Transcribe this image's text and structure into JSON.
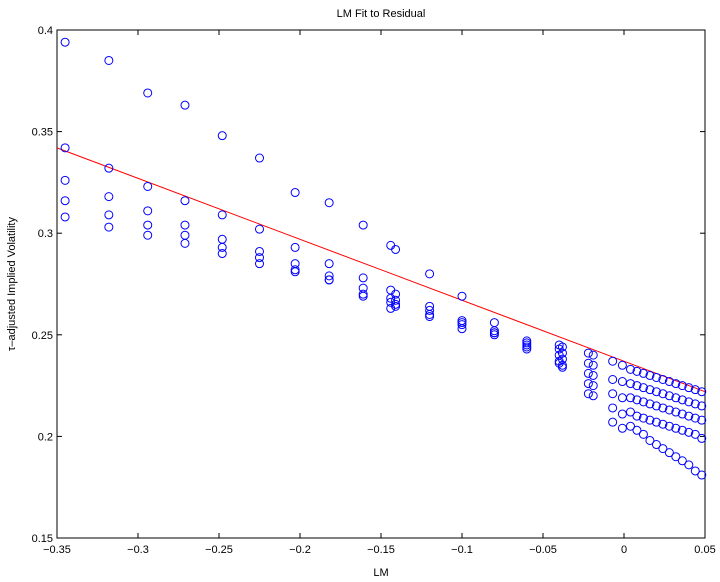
{
  "chart_data": {
    "type": "scatter",
    "title": "LM Fit to Residual",
    "xlabel": "LM",
    "ylabel": "τ–adjusted Implied Volatility",
    "xlim": [
      -0.35,
      0.05
    ],
    "ylim": [
      0.15,
      0.4
    ],
    "xticks": [
      -0.35,
      -0.3,
      -0.25,
      -0.2,
      -0.15,
      -0.1,
      -0.05,
      0,
      0.05
    ],
    "xtick_labels": [
      "−0.35",
      "−0.3",
      "−0.25",
      "−0.2",
      "−0.15",
      "−0.1",
      "−0.05",
      "0",
      "0.05"
    ],
    "yticks": [
      0.15,
      0.2,
      0.25,
      0.3,
      0.35,
      0.4
    ],
    "ytick_labels": [
      "0.15",
      "0.2",
      "0.25",
      "0.3",
      "0.35",
      "0.4"
    ],
    "grid": false,
    "marker_color": "#0000ff",
    "fit_color": "#ff0000",
    "points": [
      [
        -0.345,
        0.394
      ],
      [
        -0.345,
        0.342
      ],
      [
        -0.345,
        0.326
      ],
      [
        -0.345,
        0.316
      ],
      [
        -0.345,
        0.308
      ],
      [
        -0.318,
        0.385
      ],
      [
        -0.318,
        0.332
      ],
      [
        -0.318,
        0.318
      ],
      [
        -0.318,
        0.309
      ],
      [
        -0.318,
        0.303
      ],
      [
        -0.294,
        0.369
      ],
      [
        -0.294,
        0.323
      ],
      [
        -0.294,
        0.311
      ],
      [
        -0.294,
        0.304
      ],
      [
        -0.294,
        0.299
      ],
      [
        -0.271,
        0.363
      ],
      [
        -0.271,
        0.316
      ],
      [
        -0.271,
        0.304
      ],
      [
        -0.271,
        0.299
      ],
      [
        -0.271,
        0.295
      ],
      [
        -0.248,
        0.348
      ],
      [
        -0.248,
        0.309
      ],
      [
        -0.248,
        0.297
      ],
      [
        -0.248,
        0.293
      ],
      [
        -0.248,
        0.29
      ],
      [
        -0.225,
        0.337
      ],
      [
        -0.225,
        0.302
      ],
      [
        -0.225,
        0.291
      ],
      [
        -0.225,
        0.288
      ],
      [
        -0.225,
        0.285
      ],
      [
        -0.203,
        0.32
      ],
      [
        -0.203,
        0.293
      ],
      [
        -0.203,
        0.285
      ],
      [
        -0.203,
        0.282
      ],
      [
        -0.203,
        0.281
      ],
      [
        -0.182,
        0.315
      ],
      [
        -0.182,
        0.285
      ],
      [
        -0.182,
        0.279
      ],
      [
        -0.182,
        0.277
      ],
      [
        -0.182,
        0.277
      ],
      [
        -0.161,
        0.304
      ],
      [
        -0.161,
        0.278
      ],
      [
        -0.161,
        0.273
      ],
      [
        -0.161,
        0.27
      ],
      [
        -0.161,
        0.269
      ],
      [
        -0.144,
        0.294
      ],
      [
        -0.144,
        0.272
      ],
      [
        -0.144,
        0.268
      ],
      [
        -0.144,
        0.266
      ],
      [
        -0.144,
        0.263
      ],
      [
        -0.141,
        0.292
      ],
      [
        -0.141,
        0.27
      ],
      [
        -0.141,
        0.267
      ],
      [
        -0.141,
        0.265
      ],
      [
        -0.141,
        0.264
      ],
      [
        -0.12,
        0.28
      ],
      [
        -0.12,
        0.264
      ],
      [
        -0.12,
        0.262
      ],
      [
        -0.12,
        0.26
      ],
      [
        -0.12,
        0.259
      ],
      [
        -0.1,
        0.269
      ],
      [
        -0.1,
        0.257
      ],
      [
        -0.1,
        0.256
      ],
      [
        -0.1,
        0.255
      ],
      [
        -0.1,
        0.253
      ],
      [
        -0.08,
        0.256
      ],
      [
        -0.08,
        0.252
      ],
      [
        -0.08,
        0.251
      ],
      [
        -0.08,
        0.251
      ],
      [
        -0.08,
        0.25
      ],
      [
        -0.06,
        0.247
      ],
      [
        -0.06,
        0.246
      ],
      [
        -0.06,
        0.245
      ],
      [
        -0.06,
        0.244
      ],
      [
        -0.06,
        0.243
      ],
      [
        -0.04,
        0.245
      ],
      [
        -0.04,
        0.243
      ],
      [
        -0.04,
        0.24
      ],
      [
        -0.04,
        0.237
      ],
      [
        -0.04,
        0.236
      ],
      [
        -0.038,
        0.244
      ],
      [
        -0.038,
        0.241
      ],
      [
        -0.038,
        0.238
      ],
      [
        -0.038,
        0.235
      ],
      [
        -0.038,
        0.234
      ],
      [
        -0.022,
        0.241
      ],
      [
        -0.022,
        0.236
      ],
      [
        -0.022,
        0.231
      ],
      [
        -0.022,
        0.226
      ],
      [
        -0.022,
        0.221
      ],
      [
        -0.019,
        0.24
      ],
      [
        -0.019,
        0.235
      ],
      [
        -0.019,
        0.23
      ],
      [
        -0.019,
        0.225
      ],
      [
        -0.019,
        0.22
      ],
      [
        -0.007,
        0.237
      ],
      [
        -0.007,
        0.228
      ],
      [
        -0.007,
        0.221
      ],
      [
        -0.007,
        0.214
      ],
      [
        -0.007,
        0.207
      ],
      [
        -0.001,
        0.235
      ],
      [
        -0.001,
        0.227
      ],
      [
        -0.001,
        0.219
      ],
      [
        -0.001,
        0.211
      ],
      [
        -0.001,
        0.204
      ],
      [
        0.004,
        0.233
      ],
      [
        0.004,
        0.226
      ],
      [
        0.004,
        0.219
      ],
      [
        0.004,
        0.212
      ],
      [
        0.004,
        0.205
      ],
      [
        0.008,
        0.232
      ],
      [
        0.008,
        0.225
      ],
      [
        0.008,
        0.218
      ],
      [
        0.008,
        0.21
      ],
      [
        0.008,
        0.203
      ],
      [
        0.012,
        0.231
      ],
      [
        0.012,
        0.224
      ],
      [
        0.012,
        0.217
      ],
      [
        0.012,
        0.209
      ],
      [
        0.012,
        0.201
      ],
      [
        0.016,
        0.23
      ],
      [
        0.016,
        0.223
      ],
      [
        0.016,
        0.216
      ],
      [
        0.016,
        0.208
      ],
      [
        0.016,
        0.198
      ],
      [
        0.02,
        0.229
      ],
      [
        0.02,
        0.222
      ],
      [
        0.02,
        0.215
      ],
      [
        0.02,
        0.207
      ],
      [
        0.02,
        0.196
      ],
      [
        0.024,
        0.228
      ],
      [
        0.024,
        0.221
      ],
      [
        0.024,
        0.214
      ],
      [
        0.024,
        0.206
      ],
      [
        0.024,
        0.194
      ],
      [
        0.028,
        0.227
      ],
      [
        0.028,
        0.22
      ],
      [
        0.028,
        0.213
      ],
      [
        0.028,
        0.205
      ],
      [
        0.028,
        0.192
      ],
      [
        0.032,
        0.226
      ],
      [
        0.032,
        0.219
      ],
      [
        0.032,
        0.212
      ],
      [
        0.032,
        0.204
      ],
      [
        0.032,
        0.19
      ],
      [
        0.036,
        0.225
      ],
      [
        0.036,
        0.218
      ],
      [
        0.036,
        0.211
      ],
      [
        0.036,
        0.203
      ],
      [
        0.036,
        0.188
      ],
      [
        0.04,
        0.224
      ],
      [
        0.04,
        0.217
      ],
      [
        0.04,
        0.21
      ],
      [
        0.04,
        0.202
      ],
      [
        0.04,
        0.186
      ],
      [
        0.044,
        0.223
      ],
      [
        0.044,
        0.216
      ],
      [
        0.044,
        0.209
      ],
      [
        0.044,
        0.201
      ],
      [
        0.044,
        0.183
      ],
      [
        0.048,
        0.222
      ],
      [
        0.048,
        0.215
      ],
      [
        0.048,
        0.208
      ],
      [
        0.048,
        0.199
      ],
      [
        0.048,
        0.181
      ]
    ],
    "fit_line": {
      "x": [
        -0.35,
        0.05
      ],
      "y": [
        0.342,
        0.222
      ]
    }
  }
}
